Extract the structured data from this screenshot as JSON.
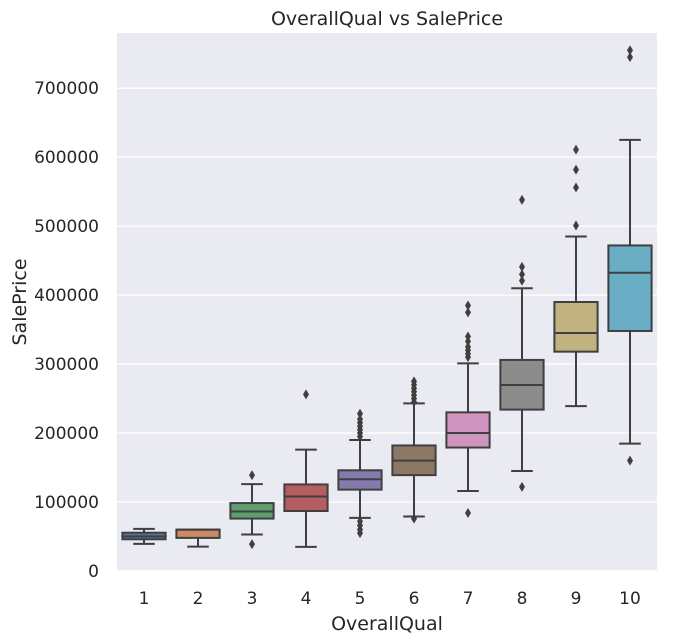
{
  "chart_data": {
    "type": "box",
    "title": "OverallQual vs SalePrice",
    "xlabel": "OverallQual",
    "ylabel": "SalePrice",
    "categories": [
      "1",
      "2",
      "3",
      "4",
      "5",
      "6",
      "7",
      "8",
      "9",
      "10"
    ],
    "ylim": [
      0,
      780000
    ],
    "yticks": [
      0,
      100000,
      200000,
      300000,
      400000,
      500000,
      600000,
      700000
    ],
    "grid": true,
    "colors": {
      "background": "#eaeaf2",
      "grid": "#ffffff",
      "box_edge": "#3f3f3f",
      "boxes": [
        "#5975a4",
        "#cc8963",
        "#5f9e6e",
        "#b55d60",
        "#857aab",
        "#8d7866",
        "#d095bf",
        "#8c8c8c",
        "#c1b37f",
        "#6aaec6"
      ]
    },
    "boxes": [
      {
        "category": "1",
        "whisker_low": 39300,
        "q1": 46000,
        "median": 50150,
        "q3": 55500,
        "whisker_high": 61000,
        "outliers": []
      },
      {
        "category": "2",
        "whisker_low": 35300,
        "q1": 48000,
        "median": 60000,
        "q3": 60000,
        "whisker_high": 60000,
        "outliers": []
      },
      {
        "category": "3",
        "whisker_low": 53000,
        "q1": 76000,
        "median": 86250,
        "q3": 98500,
        "whisker_high": 126000,
        "outliers": [
          39000,
          139000
        ]
      },
      {
        "category": "4",
        "whisker_low": 34900,
        "q1": 87000,
        "median": 108000,
        "q3": 125500,
        "whisker_high": 176000,
        "outliers": [
          256000
        ]
      },
      {
        "category": "5",
        "whisker_low": 77000,
        "q1": 118000,
        "median": 133000,
        "q3": 146000,
        "whisker_high": 190000,
        "outliers": [
          55000,
          60000,
          66000,
          72000,
          195000,
          200000,
          205000,
          210000,
          215000,
          220000,
          228000
        ]
      },
      {
        "category": "6",
        "whisker_low": 79000,
        "q1": 139000,
        "median": 160000,
        "q3": 182000,
        "whisker_high": 243000,
        "outliers": [
          76000,
          245000,
          250000,
          255000,
          260000,
          265000,
          270000,
          275000
        ]
      },
      {
        "category": "7",
        "whisker_low": 116000,
        "q1": 179000,
        "median": 200000,
        "q3": 230000,
        "whisker_high": 301000,
        "outliers": [
          84000,
          310000,
          315000,
          320000,
          325000,
          333000,
          340000,
          375000,
          385000
        ]
      },
      {
        "category": "8",
        "whisker_low": 145000,
        "q1": 234000,
        "median": 269750,
        "q3": 306000,
        "whisker_high": 410000,
        "outliers": [
          122000,
          421000,
          430000,
          441000,
          538000
        ]
      },
      {
        "category": "9",
        "whisker_low": 239000,
        "q1": 318000,
        "median": 345000,
        "q3": 390000,
        "whisker_high": 485000,
        "outliers": [
          501000,
          556000,
          582000,
          611000
        ]
      },
      {
        "category": "10",
        "whisker_low": 184750,
        "q1": 348000,
        "median": 432390,
        "q3": 472000,
        "whisker_high": 625000,
        "outliers": [
          160000,
          745000,
          755000
        ]
      }
    ]
  }
}
